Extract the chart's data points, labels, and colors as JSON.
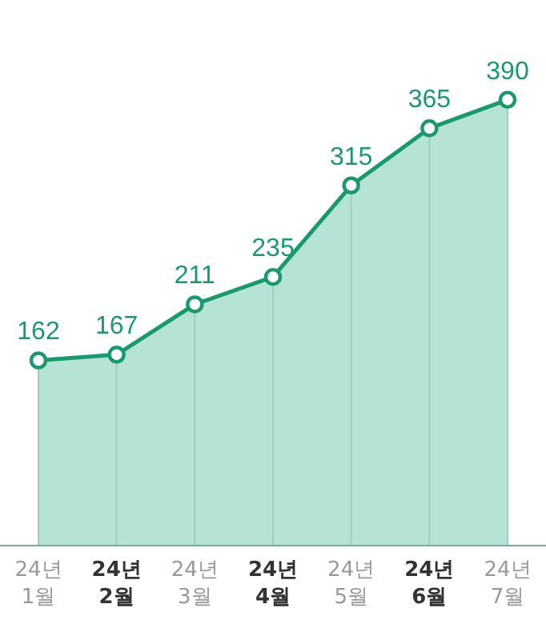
{
  "chart_data": {
    "type": "area",
    "categories": [
      "24년 1월",
      "24년 2월",
      "24년 3월",
      "24년 4월",
      "24년 5월",
      "24년 6월",
      "24년 7월"
    ],
    "series": [
      {
        "color": "#1a9a6c",
        "values": [
          162,
          167,
          211,
          235,
          315,
          365,
          390
        ]
      }
    ],
    "data_labels": true,
    "grid": "x",
    "marker": "circle",
    "line_style": "solid"
  }
}
